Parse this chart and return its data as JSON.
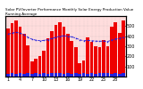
{
  "title": "Solar PV/Inverter Performance Monthly Solar Energy Production Value Running Average",
  "bar_values": [
    480,
    530,
    560,
    490,
    420,
    310,
    150,
    180,
    200,
    260,
    380,
    450,
    510,
    540,
    490,
    420,
    350,
    290,
    130,
    160,
    390,
    340,
    300,
    290,
    360,
    300,
    490,
    540,
    430,
    560
  ],
  "running_avg": [
    420,
    430,
    440,
    430,
    415,
    390,
    370,
    360,
    355,
    358,
    365,
    378,
    390,
    400,
    405,
    400,
    393,
    382,
    365,
    355,
    358,
    355,
    352,
    350,
    352,
    348,
    360,
    375,
    378,
    390
  ],
  "small_bar_values": [
    30,
    35,
    28,
    32,
    25,
    38,
    29,
    34,
    27,
    33,
    26,
    31,
    32,
    36,
    29,
    33,
    26,
    39,
    30,
    35,
    28,
    34,
    27,
    32,
    31,
    37,
    30,
    34,
    27,
    33
  ],
  "bar_color": "#ee0000",
  "avg_line_color": "#2222dd",
  "avg_dot_color": "#2222dd",
  "small_bar_color": "#2222dd",
  "bg_color": "#ffffff",
  "plot_bg_color": "#ffdddd",
  "grid_color": "#aaaaaa",
  "title_color": "#000000",
  "ylim": [
    0,
    600
  ],
  "ytick_values": [
    100,
    200,
    300,
    400,
    500
  ],
  "num_bars": 30,
  "title_fontsize": 3.0,
  "tick_fontsize": 3.5,
  "bar_width": 0.82
}
